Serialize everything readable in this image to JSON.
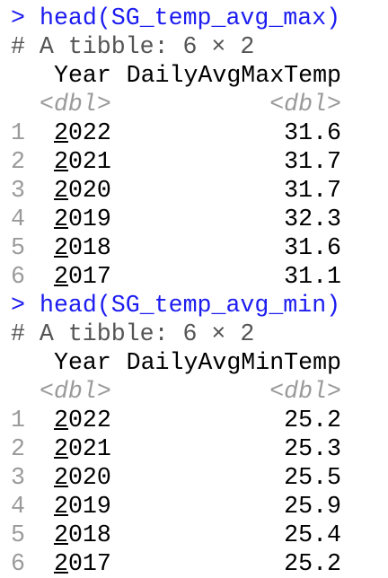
{
  "blocks": [
    {
      "prompt": ">",
      "command": "head(SG_temp_avg_max)",
      "comment": "# A tibble: 6 × 2",
      "columns": [
        "Year",
        "DailyAvgMaxTemp"
      ],
      "types": [
        "<dbl>",
        "<dbl>"
      ],
      "rows": [
        {
          "index": "1",
          "year": "2022",
          "value": "31.6"
        },
        {
          "index": "2",
          "year": "2021",
          "value": "31.7"
        },
        {
          "index": "3",
          "year": "2020",
          "value": "31.7"
        },
        {
          "index": "4",
          "year": "2019",
          "value": "32.3"
        },
        {
          "index": "5",
          "year": "2018",
          "value": "31.6"
        },
        {
          "index": "6",
          "year": "2017",
          "value": "31.1"
        }
      ]
    },
    {
      "prompt": ">",
      "command": "head(SG_temp_avg_min)",
      "comment": "# A tibble: 6 × 2",
      "columns": [
        "Year",
        "DailyAvgMinTemp"
      ],
      "types": [
        "<dbl>",
        "<dbl>"
      ],
      "rows": [
        {
          "index": "1",
          "year": "2022",
          "value": "25.2"
        },
        {
          "index": "2",
          "year": "2021",
          "value": "25.3"
        },
        {
          "index": "3",
          "year": "2020",
          "value": "25.5"
        },
        {
          "index": "4",
          "year": "2019",
          "value": "25.9"
        },
        {
          "index": "5",
          "year": "2018",
          "value": "25.4"
        },
        {
          "index": "6",
          "year": "2017",
          "value": "25.2"
        }
      ]
    }
  ]
}
